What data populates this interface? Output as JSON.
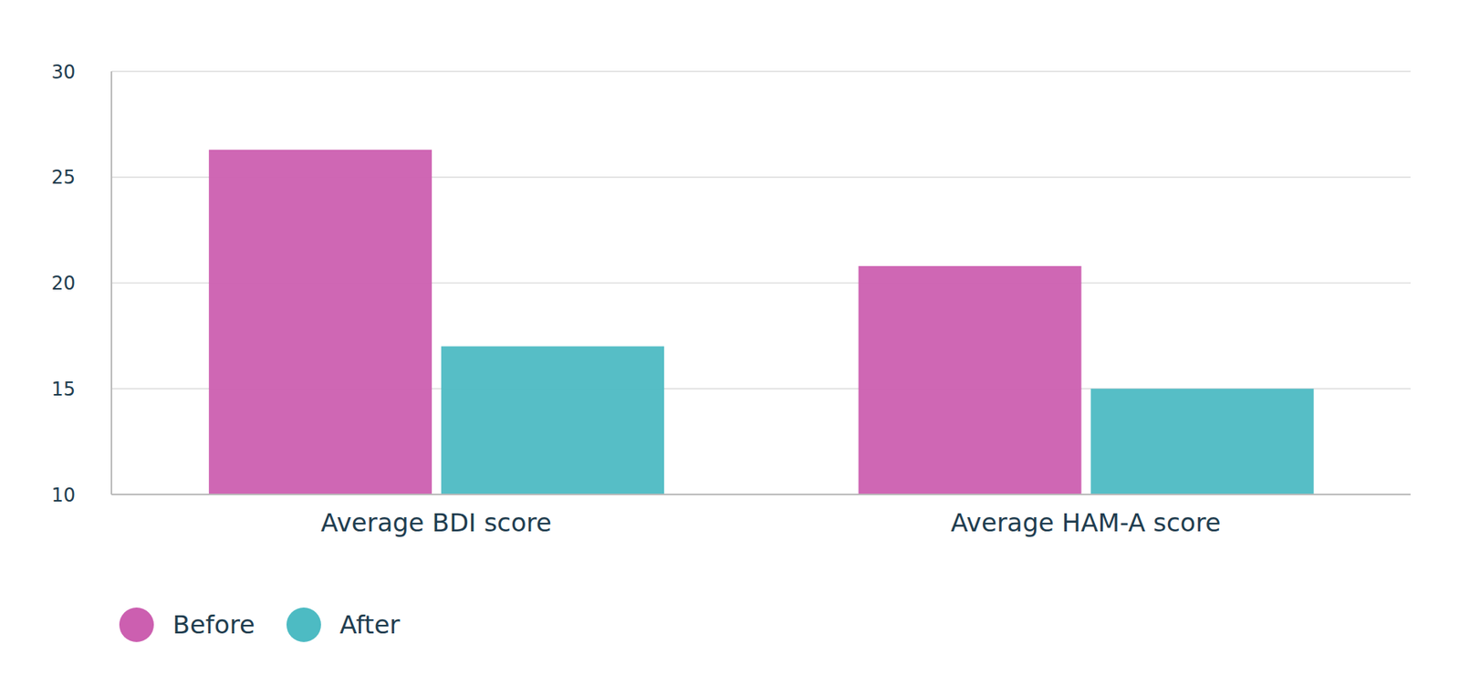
{
  "chart_data": {
    "type": "bar",
    "categories": [
      "Average BDI score",
      "Average HAM-A score"
    ],
    "series": [
      {
        "name": "Before",
        "color": "#cc5fb0",
        "values": [
          26.3,
          20.8
        ]
      },
      {
        "name": "After",
        "color": "#4dbbc3",
        "values": [
          17.0,
          15.0
        ]
      }
    ],
    "ylim": [
      10,
      30
    ],
    "yticks": [
      10,
      15,
      20,
      25,
      30
    ],
    "grid": true,
    "legend": "bottom left"
  }
}
